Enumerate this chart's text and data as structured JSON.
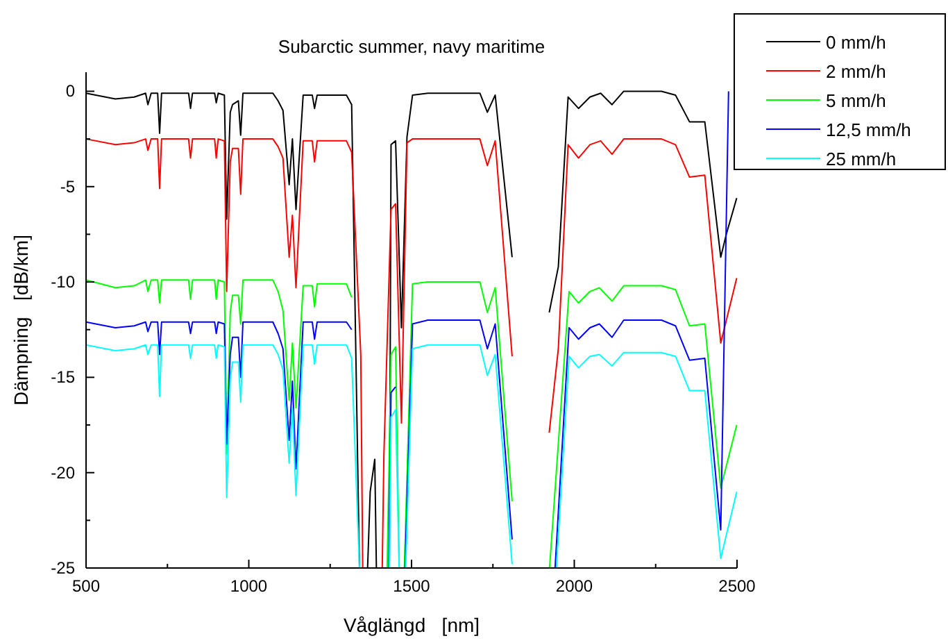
{
  "chart_data": {
    "type": "line",
    "title": "Subarctic summer, navy maritime",
    "xlabel": "Våglängd   [nm]",
    "ylabel": "Dämpning   [dB/km]",
    "xlim": [
      500,
      2500
    ],
    "xticks": [
      500,
      {
        "value": 750,
        "label": null
      },
      1000,
      {
        "value": 1250,
        "label": null
      },
      1500,
      {
        "value": 1750,
        "label": null
      },
      2000,
      {
        "value": 2250,
        "label": null
      },
      2500
    ],
    "ylim": [
      -25,
      1
    ],
    "yticks": [
      -25,
      {
        "value": -22.5,
        "label": null
      },
      -20,
      {
        "value": -17.5,
        "label": null
      },
      -15,
      {
        "value": -12.5,
        "label": null
      },
      -10,
      {
        "value": -7.5,
        "label": null
      },
      -5,
      {
        "value": -2.5,
        "label": null
      },
      0
    ],
    "grid": false,
    "legend": "top right",
    "marker": "none",
    "line_style": "solid",
    "series": [
      {
        "name": "0 mm/h",
        "color": "#000000",
        "x": [
          500,
          590,
          648,
          683,
          690,
          700,
          720,
          726,
          732,
          815,
          821,
          827,
          895,
          900,
          906,
          925,
          932,
          943,
          950,
          968,
          975,
          982,
          1074,
          1090,
          1105,
          1124,
          1134,
          1145,
          1167,
          1195,
          1202,
          1210,
          1300,
          1316,
          1340,
          1350,
          1365,
          1373,
          1387,
          1392,
          1410,
          1432,
          1437,
          1451,
          1469,
          1486,
          1503,
          1550,
          1650,
          1710,
          1733,
          1757,
          1809,
          1860,
          1923,
          1951,
          1981,
          2013,
          2048,
          2081,
          2116,
          2152,
          2268,
          2311,
          2354,
          2401,
          2450,
          2467,
          2499
        ],
        "values": [
          -0.1,
          -0.4,
          -0.3,
          -0.1,
          -0.7,
          -0.1,
          -0.1,
          -2.2,
          -0.1,
          -0.1,
          -0.9,
          -0.1,
          -0.1,
          -0.6,
          -0.1,
          -0.2,
          -6.7,
          -1.1,
          -0.7,
          -0.5,
          -2.3,
          -0.1,
          -0.1,
          -0.5,
          -1.0,
          -4.9,
          -2.5,
          -6.2,
          -0.2,
          -0.2,
          -0.9,
          -0.2,
          -0.2,
          -0.7,
          -25,
          null,
          -25,
          -21,
          -19.3,
          -25,
          null,
          -25,
          -2.8,
          -2.6,
          -12.4,
          -2.4,
          -0.2,
          -0.1,
          -0.1,
          -0.1,
          -1.1,
          -0.2,
          -8.7,
          null,
          -11.6,
          -9.2,
          -0.3,
          -0.9,
          -0.3,
          -0.1,
          -0.7,
          0,
          0,
          -0.2,
          -1.6,
          -1.6,
          -8.7,
          -7.5,
          -5.6
        ]
      },
      {
        "name": "2 mm/h",
        "color": "#ff0000",
        "x": [
          500,
          590,
          648,
          683,
          690,
          700,
          720,
          726,
          732,
          815,
          821,
          827,
          895,
          900,
          906,
          925,
          932,
          943,
          950,
          968,
          975,
          982,
          1074,
          1090,
          1105,
          1124,
          1134,
          1145,
          1167,
          1195,
          1202,
          1210,
          1300,
          1316,
          1344,
          1350,
          1380,
          1410,
          1415,
          1437,
          1451,
          1469,
          1486,
          1503,
          1550,
          1650,
          1710,
          1733,
          1757,
          1809,
          1860,
          1923,
          1951,
          1981,
          2013,
          2048,
          2081,
          2116,
          2152,
          2268,
          2311,
          2354,
          2401,
          2450,
          2499
        ],
        "values": [
          -2.5,
          -2.8,
          -2.7,
          -2.5,
          -3.1,
          -2.5,
          -2.5,
          -5.1,
          -2.5,
          -2.5,
          -3.5,
          -2.5,
          -2.5,
          -3.5,
          -2.5,
          -2.6,
          -10.5,
          -3.7,
          -3.0,
          -3.0,
          -5.4,
          -2.5,
          -2.5,
          -2.9,
          -3.5,
          -8.7,
          -6.5,
          -10.3,
          -2.6,
          -2.6,
          -3.7,
          -2.6,
          -2.6,
          -3.2,
          -13.8,
          -25,
          null,
          -25,
          -19.1,
          -6.2,
          -5.9,
          -17.4,
          -2.7,
          -2.5,
          -2.5,
          -2.5,
          -2.5,
          -3.9,
          -2.6,
          -13.9,
          null,
          -17.9,
          -13.5,
          -2.8,
          -3.5,
          -2.8,
          -2.6,
          -3.3,
          -2.5,
          -2.5,
          -2.8,
          -4.5,
          -4.4,
          -13.2,
          -9.8
        ]
      },
      {
        "name": "5 mm/h",
        "color": "#00ff00",
        "x": [
          500,
          590,
          648,
          683,
          690,
          700,
          720,
          726,
          732,
          815,
          821,
          827,
          895,
          900,
          906,
          925,
          932,
          943,
          950,
          968,
          975,
          982,
          1074,
          1090,
          1105,
          1124,
          1134,
          1145,
          1167,
          1195,
          1202,
          1210,
          1300,
          1316,
          1340,
          1380,
          1425,
          1437,
          1451,
          1462,
          1470,
          1478,
          1503,
          1550,
          1650,
          1710,
          1733,
          1757,
          1809,
          1860,
          1924,
          1984,
          2013,
          2048,
          2077,
          2116,
          2152,
          2268,
          2311,
          2354,
          2401,
          2450,
          2499
        ],
        "values": [
          -9.9,
          -10.3,
          -10.2,
          -9.9,
          -10.5,
          -9.9,
          -9.9,
          -11.1,
          -9.9,
          -9.9,
          -10.9,
          -9.9,
          -9.9,
          -10.9,
          -9.9,
          -10.0,
          -19.0,
          -11.6,
          -10.7,
          -10.7,
          -12.2,
          -9.9,
          -9.9,
          -10.5,
          -11.5,
          -16.2,
          -13.2,
          -16.6,
          -10.2,
          -10.2,
          -11.3,
          -10.1,
          -10.1,
          -10.8,
          null,
          null,
          -25,
          -13.8,
          -13.4,
          -25,
          null,
          -25,
          -10.1,
          -10.0,
          -10.0,
          -10.0,
          -11.6,
          -10.3,
          -21.5,
          null,
          -25,
          -10.5,
          -11.1,
          -10.5,
          -10.3,
          -11.0,
          -10.2,
          -10.2,
          -10.4,
          -12.3,
          -12.2,
          -20.8,
          -17.5
        ]
      },
      {
        "name": "12,5 mm/h",
        "color": "#0000ff",
        "x": [
          500,
          590,
          648,
          683,
          690,
          700,
          720,
          726,
          732,
          815,
          821,
          827,
          895,
          900,
          906,
          925,
          932,
          943,
          950,
          968,
          975,
          982,
          1074,
          1090,
          1105,
          1124,
          1134,
          1145,
          1167,
          1195,
          1202,
          1210,
          1300,
          1316,
          1340,
          1380,
          1430,
          1437,
          1451,
          1462,
          1470,
          1480,
          1503,
          1550,
          1650,
          1710,
          1733,
          1757,
          1809,
          1860,
          1941,
          1984,
          2013,
          2048,
          2077,
          2116,
          2152,
          2268,
          2311,
          2354,
          2401,
          2450,
          2474
        ],
        "values": [
          -12.1,
          -12.4,
          -12.3,
          -12.1,
          -12.6,
          -12.1,
          -12.1,
          -13.8,
          -12.1,
          -12.1,
          -12.7,
          -12.1,
          -12.1,
          -12.7,
          -12.1,
          -12.2,
          -18.5,
          -13.8,
          -12.9,
          -12.9,
          -15.0,
          -12.1,
          -12.1,
          -12.7,
          -13.5,
          -18.3,
          -15.2,
          -19.8,
          -12.1,
          -12.1,
          -13.0,
          -12.1,
          -12.1,
          -12.5,
          null,
          null,
          -25,
          -15.8,
          -15.5,
          null,
          null,
          -25,
          -12.2,
          -12.0,
          -12.0,
          -12.0,
          -13.5,
          -12.2,
          -23.5,
          null,
          -25,
          -12.4,
          -13.0,
          -12.4,
          -12.2,
          -12.9,
          -12.0,
          -12.0,
          -12.3,
          -14.1,
          -14.0,
          -23.0,
          0
        ]
      },
      {
        "name": "25 mm/h",
        "color": "#00ffff",
        "x": [
          500,
          590,
          648,
          683,
          690,
          700,
          720,
          726,
          732,
          815,
          821,
          827,
          895,
          900,
          906,
          925,
          932,
          943,
          950,
          968,
          975,
          982,
          1074,
          1090,
          1105,
          1124,
          1134,
          1145,
          1167,
          1195,
          1202,
          1210,
          1300,
          1316,
          1340,
          1380,
          1432,
          1437,
          1451,
          1462,
          1470,
          1482,
          1503,
          1550,
          1650,
          1710,
          1733,
          1757,
          1809,
          1860,
          1945,
          1984,
          2013,
          2048,
          2077,
          2116,
          2152,
          2268,
          2311,
          2354,
          2401,
          2450,
          2499
        ],
        "values": [
          -13.3,
          -13.6,
          -13.5,
          -13.3,
          -13.8,
          -13.3,
          -13.3,
          -16.0,
          -13.3,
          -13.3,
          -14.0,
          -13.3,
          -13.3,
          -14.0,
          -13.3,
          -13.4,
          -21.3,
          -15.1,
          -14.2,
          -14.2,
          -16.3,
          -13.3,
          -13.3,
          -13.8,
          -14.6,
          -19.5,
          -16.6,
          -21.2,
          -13.3,
          -13.3,
          -14.3,
          -13.3,
          -13.3,
          -14.0,
          -25,
          null,
          -25,
          -17.1,
          -16.7,
          -25,
          null,
          -25,
          -13.5,
          -13.3,
          -13.3,
          -13.3,
          -14.9,
          -13.8,
          -24.8,
          null,
          -25,
          -13.9,
          -14.5,
          -13.9,
          -13.8,
          -14.4,
          -13.7,
          -13.7,
          -13.9,
          -15.7,
          -15.7,
          -24.5,
          -21.0
        ]
      }
    ]
  }
}
